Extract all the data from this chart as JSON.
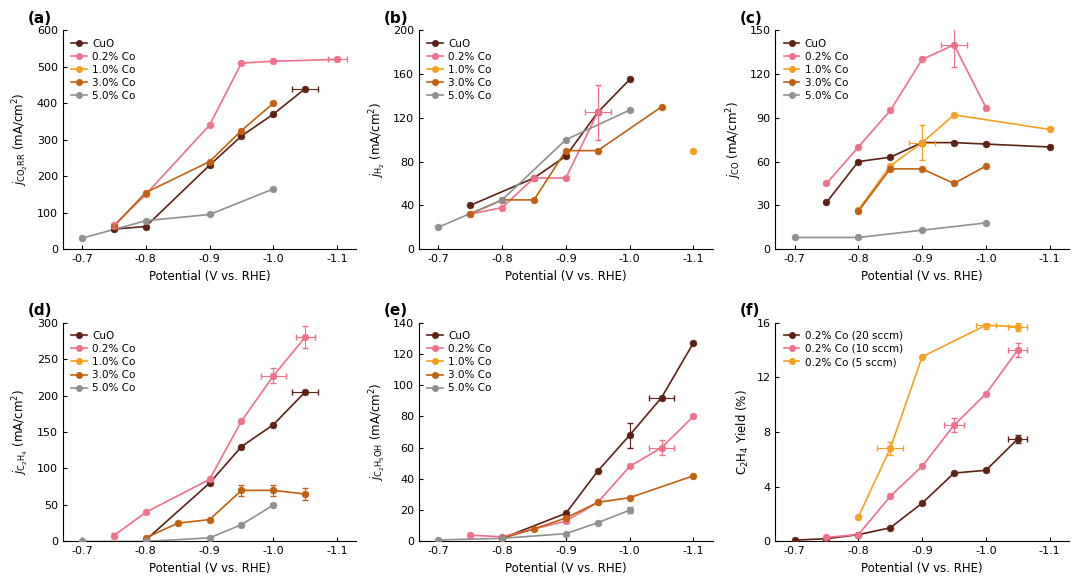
{
  "colors": {
    "CuO": "#5C2215",
    "0.2% Co": "#F0708A",
    "1.0% Co": "#F5A020",
    "3.0% Co": "#C06010",
    "5.0% Co": "#909090",
    "0.2% Co (20 sccm)": "#5C2215",
    "0.2% Co (10 sccm)": "#F0708A",
    "0.2% Co (5 sccm)": "#F5A020"
  },
  "x_vals": [
    -0.7,
    -0.75,
    -0.8,
    -0.85,
    -0.9,
    -0.95,
    -1.0,
    -1.05,
    -1.1
  ],
  "panel_a": {
    "title": "(a)",
    "ylabel": "$j_{\\mathrm{CO_2RR}}$ (mA/cm$^2$)",
    "ylim": [
      0,
      600
    ],
    "yticks": [
      0,
      100,
      200,
      300,
      400,
      500,
      600
    ],
    "data": {
      "CuO": [
        null,
        55,
        62,
        null,
        230,
        310,
        370,
        440,
        null
      ],
      "0.2% Co": [
        null,
        65,
        150,
        null,
        340,
        510,
        515,
        null,
        520
      ],
      "1.0% Co": [
        null,
        null,
        null,
        null,
        null,
        null,
        null,
        null,
        null
      ],
      "3.0% Co": [
        null,
        63,
        155,
        null,
        240,
        325,
        400,
        null,
        null
      ],
      "5.0% Co": [
        30,
        null,
        78,
        null,
        95,
        null,
        165,
        null,
        null
      ]
    },
    "xerr": {
      "CuO": [
        null,
        null,
        null,
        null,
        null,
        null,
        null,
        0.02,
        null
      ],
      "0.2% Co": [
        null,
        null,
        null,
        null,
        null,
        null,
        null,
        null,
        0.015
      ],
      "1.0% Co": [
        null,
        null,
        null,
        null,
        null,
        null,
        null,
        null,
        null
      ],
      "3.0% Co": [
        null,
        null,
        null,
        null,
        null,
        null,
        null,
        null,
        0.015
      ],
      "5.0% Co": [
        null,
        null,
        null,
        null,
        null,
        null,
        null,
        null,
        null
      ]
    },
    "yerr": {
      "CuO": [
        null,
        null,
        null,
        null,
        null,
        null,
        null,
        null,
        null
      ],
      "0.2% Co": [
        null,
        8,
        null,
        null,
        null,
        null,
        null,
        null,
        null
      ],
      "1.0% Co": [
        null,
        null,
        null,
        null,
        null,
        null,
        null,
        null,
        null
      ],
      "3.0% Co": [
        null,
        null,
        null,
        null,
        null,
        null,
        null,
        null,
        null
      ],
      "5.0% Co": [
        null,
        null,
        null,
        null,
        null,
        null,
        null,
        null,
        null
      ]
    }
  },
  "panel_b": {
    "title": "(b)",
    "ylabel": "$j_{\\mathrm{H_2}}$ (mA/cm$^2$)",
    "ylim": [
      0,
      200
    ],
    "yticks": [
      0,
      40,
      80,
      120,
      160,
      200
    ],
    "data": {
      "CuO": [
        null,
        40,
        null,
        65,
        85,
        125,
        155,
        null,
        null
      ],
      "0.2% Co": [
        null,
        32,
        38,
        65,
        65,
        125,
        null,
        null,
        null
      ],
      "1.0% Co": [
        null,
        null,
        null,
        null,
        null,
        null,
        null,
        null,
        90
      ],
      "3.0% Co": [
        null,
        32,
        45,
        45,
        90,
        90,
        null,
        130,
        null
      ],
      "5.0% Co": [
        20,
        null,
        45,
        null,
        100,
        null,
        127,
        null,
        null
      ]
    },
    "xerr": {
      "CuO": [
        null,
        null,
        null,
        null,
        null,
        null,
        null,
        null,
        null
      ],
      "0.2% Co": [
        null,
        null,
        null,
        null,
        null,
        0.02,
        null,
        null,
        null
      ],
      "1.0% Co": [
        null,
        null,
        null,
        null,
        null,
        null,
        null,
        null,
        null
      ],
      "3.0% Co": [
        null,
        null,
        null,
        null,
        null,
        null,
        null,
        null,
        null
      ],
      "5.0% Co": [
        null,
        null,
        null,
        null,
        null,
        null,
        null,
        null,
        null
      ]
    },
    "yerr": {
      "CuO": [
        null,
        null,
        null,
        null,
        null,
        null,
        null,
        null,
        null
      ],
      "0.2% Co": [
        null,
        null,
        null,
        null,
        null,
        25,
        null,
        null,
        null
      ],
      "1.0% Co": [
        null,
        null,
        null,
        null,
        null,
        null,
        null,
        null,
        null
      ],
      "3.0% Co": [
        null,
        null,
        null,
        null,
        null,
        null,
        null,
        null,
        null
      ],
      "5.0% Co": [
        null,
        null,
        null,
        null,
        null,
        null,
        null,
        null,
        null
      ]
    }
  },
  "panel_c": {
    "title": "(c)",
    "ylabel": "$j_{\\mathrm{CO}}$ (mA/cm$^2$)",
    "ylim": [
      0,
      150
    ],
    "yticks": [
      0,
      30,
      60,
      90,
      120,
      150
    ],
    "data": {
      "CuO": [
        null,
        32,
        60,
        63,
        73,
        73,
        72,
        null,
        70
      ],
      "0.2% Co": [
        null,
        45,
        70,
        95,
        130,
        140,
        97,
        null,
        null
      ],
      "1.0% Co": [
        null,
        null,
        27,
        57,
        73,
        92,
        null,
        null,
        82
      ],
      "3.0% Co": [
        null,
        null,
        26,
        55,
        55,
        45,
        57,
        null,
        null
      ],
      "5.0% Co": [
        8,
        null,
        8,
        null,
        13,
        null,
        18,
        null,
        null
      ]
    },
    "xerr": {
      "CuO": [
        null,
        null,
        null,
        null,
        null,
        null,
        null,
        null,
        null
      ],
      "0.2% Co": [
        null,
        null,
        null,
        null,
        null,
        0.02,
        null,
        null,
        null
      ],
      "1.0% Co": [
        null,
        null,
        null,
        null,
        0.02,
        null,
        null,
        null,
        null
      ],
      "3.0% Co": [
        null,
        null,
        null,
        null,
        null,
        null,
        null,
        null,
        null
      ],
      "5.0% Co": [
        null,
        null,
        null,
        null,
        null,
        null,
        null,
        null,
        null
      ]
    },
    "yerr": {
      "CuO": [
        null,
        null,
        null,
        null,
        null,
        null,
        null,
        null,
        null
      ],
      "0.2% Co": [
        null,
        null,
        null,
        null,
        null,
        15,
        null,
        null,
        null
      ],
      "1.0% Co": [
        null,
        null,
        null,
        null,
        12,
        null,
        null,
        null,
        null
      ],
      "3.0% Co": [
        null,
        null,
        null,
        null,
        null,
        null,
        null,
        null,
        null
      ],
      "5.0% Co": [
        null,
        null,
        null,
        null,
        null,
        null,
        null,
        null,
        null
      ]
    }
  },
  "panel_d": {
    "title": "(d)",
    "ylabel": "$j_{\\mathrm{C_2H_4}}$ (mA/cm$^2$)",
    "ylim": [
      0,
      300
    ],
    "yticks": [
      0,
      50,
      100,
      150,
      200,
      250,
      300
    ],
    "data": {
      "CuO": [
        null,
        null,
        2,
        null,
        80,
        130,
        160,
        205,
        null
      ],
      "0.2% Co": [
        null,
        8,
        40,
        null,
        85,
        165,
        227,
        280,
        null
      ],
      "1.0% Co": [
        null,
        null,
        null,
        null,
        null,
        null,
        null,
        null,
        null
      ],
      "3.0% Co": [
        null,
        null,
        5,
        25,
        30,
        70,
        70,
        65,
        null
      ],
      "5.0% Co": [
        0,
        null,
        0,
        null,
        5,
        23,
        50,
        null,
        null
      ]
    },
    "xerr": {
      "CuO": [
        null,
        null,
        null,
        null,
        null,
        null,
        null,
        0.02,
        null
      ],
      "0.2% Co": [
        null,
        null,
        null,
        null,
        null,
        null,
        0.02,
        0.015,
        null
      ],
      "1.0% Co": [
        null,
        null,
        null,
        null,
        null,
        null,
        null,
        null,
        null
      ],
      "3.0% Co": [
        null,
        null,
        null,
        null,
        null,
        null,
        null,
        null,
        null
      ],
      "5.0% Co": [
        null,
        null,
        null,
        null,
        null,
        null,
        null,
        null,
        null
      ]
    },
    "yerr": {
      "CuO": [
        null,
        null,
        null,
        null,
        null,
        null,
        null,
        null,
        null
      ],
      "0.2% Co": [
        null,
        3,
        null,
        null,
        null,
        null,
        10,
        15,
        null
      ],
      "1.0% Co": [
        null,
        null,
        null,
        null,
        null,
        null,
        null,
        null,
        null
      ],
      "3.0% Co": [
        null,
        null,
        null,
        null,
        null,
        8,
        8,
        8,
        null
      ],
      "5.0% Co": [
        null,
        null,
        null,
        null,
        null,
        null,
        null,
        null,
        null
      ]
    }
  },
  "panel_e": {
    "title": "(e)",
    "ylabel": "$j_{\\mathrm{C_2H_5OH}}$ (mA/cm$^2$)",
    "ylim": [
      0,
      140
    ],
    "yticks": [
      0,
      20,
      40,
      60,
      80,
      100,
      120,
      140
    ],
    "data": {
      "CuO": [
        null,
        null,
        2,
        null,
        18,
        45,
        68,
        92,
        127
      ],
      "0.2% Co": [
        null,
        4,
        3,
        null,
        13,
        25,
        48,
        60,
        80
      ],
      "1.0% Co": [
        null,
        null,
        null,
        null,
        null,
        null,
        null,
        null,
        null
      ],
      "3.0% Co": [
        null,
        null,
        2,
        8,
        15,
        25,
        28,
        null,
        42
      ],
      "5.0% Co": [
        1,
        null,
        2,
        null,
        5,
        12,
        20,
        null,
        null
      ]
    },
    "xerr": {
      "CuO": [
        null,
        null,
        null,
        null,
        null,
        null,
        null,
        0.02,
        null
      ],
      "0.2% Co": [
        null,
        null,
        null,
        null,
        null,
        null,
        null,
        0.02,
        null
      ],
      "1.0% Co": [
        null,
        null,
        null,
        null,
        null,
        null,
        null,
        null,
        null
      ],
      "3.0% Co": [
        null,
        null,
        null,
        null,
        null,
        null,
        null,
        null,
        null
      ],
      "5.0% Co": [
        null,
        null,
        null,
        null,
        null,
        null,
        null,
        null,
        null
      ]
    },
    "yerr": {
      "CuO": [
        null,
        null,
        null,
        null,
        null,
        null,
        8,
        null,
        null
      ],
      "0.2% Co": [
        null,
        null,
        null,
        null,
        null,
        null,
        null,
        5,
        null
      ],
      "1.0% Co": [
        null,
        null,
        null,
        null,
        null,
        null,
        null,
        null,
        null
      ],
      "3.0% Co": [
        null,
        null,
        null,
        null,
        null,
        null,
        null,
        null,
        null
      ],
      "5.0% Co": [
        null,
        null,
        null,
        null,
        null,
        null,
        2,
        null,
        null
      ]
    }
  },
  "panel_f": {
    "title": "(f)",
    "ylabel": "C$_2$H$_4$ Yield (%)",
    "ylim": [
      0,
      16
    ],
    "yticks": [
      0,
      4,
      8,
      12,
      16
    ],
    "data": {
      "0.2% Co (20 sccm)": [
        0.1,
        0.2,
        0.5,
        1.0,
        2.8,
        5.0,
        5.2,
        7.5,
        null
      ],
      "0.2% Co (10 sccm)": [
        null,
        0.3,
        0.5,
        3.3,
        5.5,
        8.5,
        10.8,
        14.0,
        null
      ],
      "0.2% Co (5 sccm)": [
        null,
        null,
        1.8,
        6.8,
        13.5,
        null,
        15.8,
        15.7,
        null
      ]
    },
    "xerr": {
      "0.2% Co (20 sccm)": [
        null,
        null,
        null,
        null,
        null,
        null,
        null,
        0.015,
        null
      ],
      "0.2% Co (10 sccm)": [
        null,
        null,
        null,
        null,
        null,
        0.015,
        null,
        0.015,
        null
      ],
      "0.2% Co (5 sccm)": [
        null,
        null,
        null,
        0.02,
        null,
        null,
        0.015,
        0.015,
        null
      ]
    },
    "yerr": {
      "0.2% Co (20 sccm)": [
        null,
        null,
        null,
        null,
        null,
        null,
        null,
        0.3,
        null
      ],
      "0.2% Co (10 sccm)": [
        null,
        null,
        null,
        null,
        null,
        0.5,
        null,
        0.5,
        null
      ],
      "0.2% Co (5 sccm)": [
        null,
        null,
        null,
        0.5,
        null,
        null,
        0.3,
        0.3,
        null
      ]
    }
  }
}
